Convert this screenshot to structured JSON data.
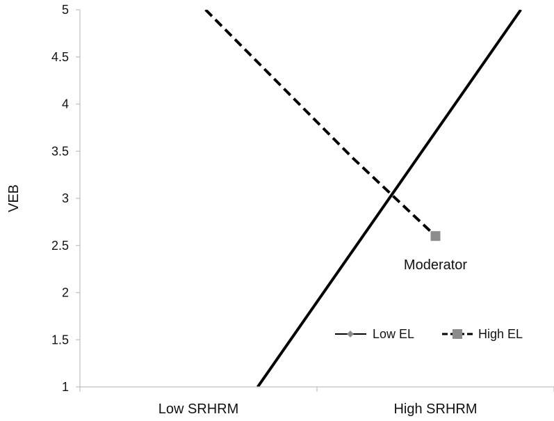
{
  "chart_data": {
    "type": "line",
    "categories": [
      "Low SRHRM",
      "High SRHRM"
    ],
    "ylabel": "VEB",
    "xlabel": "",
    "ylim": [
      1,
      5
    ],
    "yticks": [
      "1",
      "1.5",
      "2",
      "2.5",
      "3",
      "3.5",
      "4",
      "4.5",
      "5"
    ],
    "grid": false,
    "legend_position": "bottom-right",
    "series": [
      {
        "name": "Low EL",
        "style": "solid",
        "marker": "diamond",
        "color": "#000000",
        "points": [
          [
            0.75,
            1.0
          ],
          [
            1.86,
            5.0
          ]
        ]
      },
      {
        "name": "High EL",
        "style": "dashed",
        "marker": "square",
        "color": "#000000",
        "marker_color": "#8c8c8c",
        "points": [
          [
            0.53,
            5.0
          ],
          [
            1.15,
            3.43
          ],
          [
            1.5,
            2.6
          ]
        ]
      }
    ],
    "annotations": [
      {
        "text": "Moderator",
        "x": 1.5,
        "y": 2.3
      }
    ]
  }
}
